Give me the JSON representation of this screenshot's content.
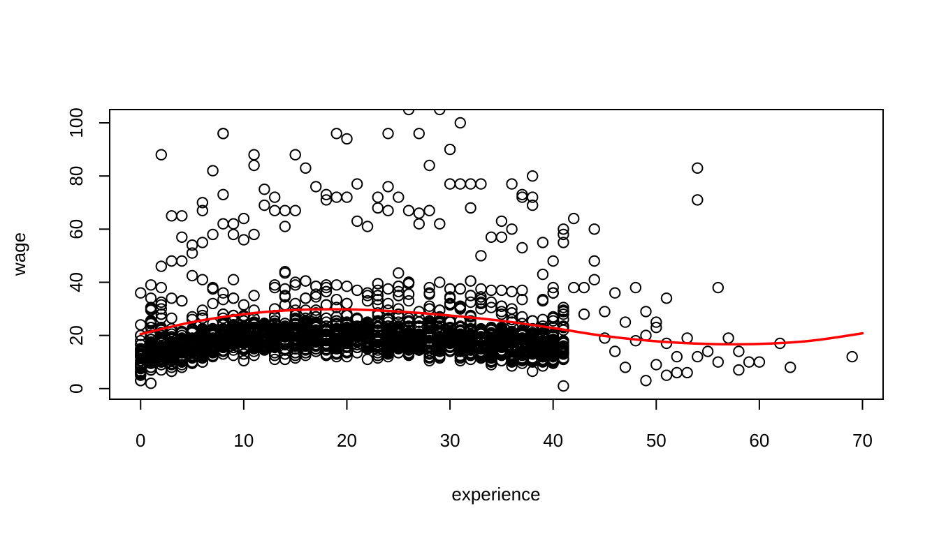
{
  "chart_data": {
    "type": "scatter",
    "title": "",
    "xlabel": "experience",
    "ylabel": "wage",
    "xlim": [
      -3,
      72
    ],
    "ylim": [
      -4,
      105
    ],
    "x_ticks": [
      0,
      10,
      20,
      30,
      40,
      50,
      60,
      70
    ],
    "y_ticks": [
      0,
      20,
      40,
      60,
      80,
      100
    ],
    "grid": false,
    "point_color": "#000000",
    "fit_color": "#ff0000",
    "dense_region": {
      "x_range": [
        0,
        41
      ],
      "y_median_at_x": [
        [
          0,
          12
        ],
        [
          5,
          17
        ],
        [
          10,
          19
        ],
        [
          15,
          20
        ],
        [
          20,
          20
        ],
        [
          25,
          19
        ],
        [
          30,
          18
        ],
        [
          35,
          17
        ],
        [
          40,
          15
        ]
      ],
      "y_spread": [
        3,
        47
      ],
      "approx_points": 2500
    },
    "series": [
      {
        "type": "scatter",
        "x": [
          0,
          0,
          0,
          0,
          0,
          0,
          1,
          1,
          1,
          1,
          2,
          2,
          2,
          3,
          3,
          4,
          4,
          4,
          5,
          5,
          6,
          6,
          6,
          7,
          7,
          8,
          8,
          8,
          8,
          9,
          9,
          10,
          10,
          11,
          11,
          11,
          12,
          12,
          13,
          13,
          14,
          14,
          15,
          15,
          16,
          17,
          18,
          18,
          19,
          19,
          20,
          20,
          21,
          21,
          22,
          23,
          23,
          24,
          24,
          24,
          25,
          26,
          26,
          27,
          27,
          27,
          28,
          28,
          29,
          29,
          30,
          30,
          31,
          31,
          32,
          32,
          33,
          33,
          34,
          35,
          35,
          36,
          36,
          37,
          37,
          37,
          38,
          38,
          38,
          39,
          39,
          40,
          40,
          41,
          41,
          41,
          41,
          42,
          42,
          43,
          43,
          44,
          44,
          44,
          45,
          45,
          46,
          46,
          47,
          47,
          48,
          48,
          49,
          49,
          49,
          50,
          50,
          50,
          51,
          51,
          51,
          52,
          52,
          53,
          53,
          54,
          54,
          54,
          55,
          56,
          56,
          57,
          58,
          58,
          59,
          60,
          62,
          63,
          69
        ],
        "y": [
          36,
          24,
          20,
          14,
          9,
          5,
          39,
          30,
          7,
          2,
          88,
          46,
          38,
          65,
          48,
          65,
          57,
          48,
          54,
          51,
          70,
          67,
          55,
          82,
          58,
          96,
          96,
          73,
          62,
          62,
          58,
          64,
          56,
          88,
          84,
          58,
          75,
          69,
          72,
          67,
          67,
          61,
          88,
          67,
          83,
          76,
          73,
          71,
          96,
          72,
          94,
          72,
          77,
          63,
          61,
          72,
          68,
          96,
          76,
          67,
          72,
          105,
          67,
          96,
          66,
          62,
          84,
          67,
          105,
          62,
          90,
          77,
          100,
          77,
          77,
          68,
          77,
          50,
          57,
          63,
          57,
          77,
          60,
          73,
          72,
          53,
          80,
          72,
          69,
          55,
          43,
          48,
          38,
          60,
          58,
          55,
          1,
          64,
          38,
          38,
          28,
          60,
          48,
          41,
          29,
          19,
          36,
          14,
          25,
          8,
          38,
          18,
          29,
          20,
          3,
          25,
          23,
          9,
          34,
          17,
          5,
          12,
          6,
          19,
          6,
          83,
          71,
          12,
          14,
          38,
          10,
          19,
          14,
          7,
          10,
          10,
          17,
          8,
          12
        ]
      },
      {
        "type": "line",
        "name": "",
        "x": [
          0,
          5,
          10,
          15,
          20,
          25,
          30,
          35,
          40,
          45,
          50,
          55,
          60,
          65,
          70
        ],
        "y": [
          20.5,
          25,
          28,
          29.6,
          29.8,
          29,
          27.5,
          25.5,
          22.8,
          19.8,
          17.8,
          16.8,
          16.8,
          18,
          20.8
        ]
      }
    ]
  }
}
